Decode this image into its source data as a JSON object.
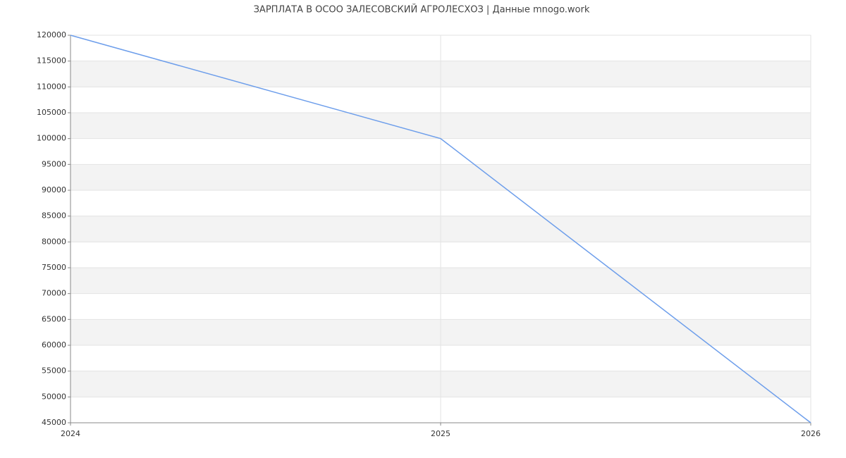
{
  "chart_data": {
    "type": "line",
    "title": "ЗАРПЛАТА В ОСОО ЗАЛЕСОВСКИЙ АГРОЛЕСХОЗ | Данные mnogo.work",
    "x": [
      2024,
      2025,
      2026
    ],
    "series": [
      {
        "color": "#6d9eeb",
        "values": [
          120000,
          100000,
          45000
        ]
      }
    ],
    "xlim": [
      2024,
      2026
    ],
    "xticks": [
      2024,
      2025,
      2026
    ],
    "ylim": [
      45000,
      120000
    ],
    "yticks": [
      45000,
      50000,
      55000,
      60000,
      65000,
      70000,
      75000,
      80000,
      85000,
      90000,
      95000,
      100000,
      105000,
      110000,
      115000,
      120000
    ],
    "grid": true
  }
}
